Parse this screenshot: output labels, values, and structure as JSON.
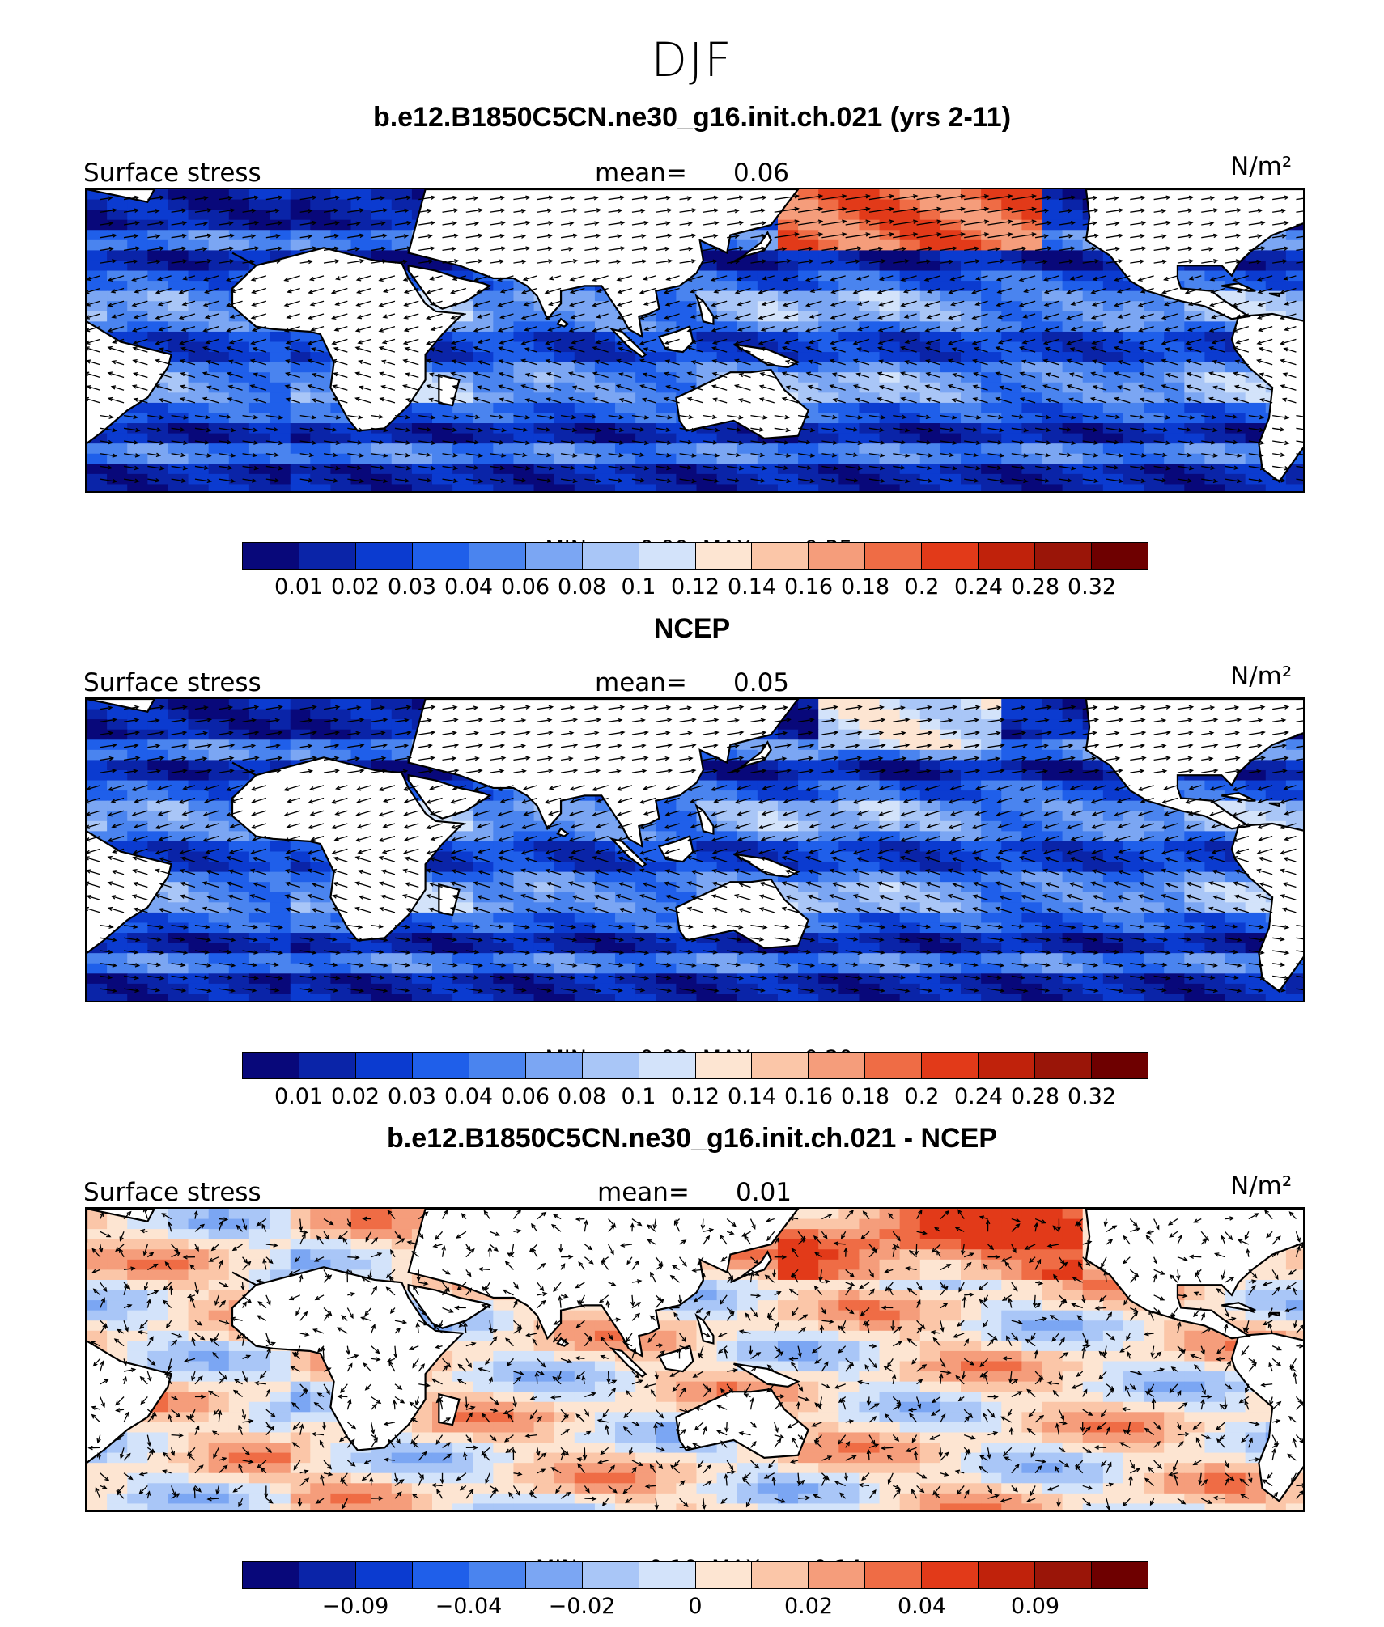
{
  "title": "DJF",
  "panels": [
    {
      "title": "b.e12.B1850C5CN.ne30_g16.init.ch.021 (yrs 2-11)",
      "left_label": "Surface stress",
      "mean_label": "mean=",
      "mean_value": "0.06",
      "units": "N/m²",
      "min_label": "MIN =",
      "min_value": "0.00",
      "max_label": "MAX =",
      "max_value": "0.35",
      "palette": "blue",
      "colorbar_labels": [
        "0.01",
        "0.02",
        "0.03",
        "0.04",
        "0.06",
        "0.08",
        "0.1",
        "0.12",
        "0.14",
        "0.16",
        "0.18",
        "0.2",
        "0.24",
        "0.28",
        "0.32"
      ]
    },
    {
      "title": "NCEP",
      "left_label": "Surface stress",
      "mean_label": "mean=",
      "mean_value": "0.05",
      "units": "N/m²",
      "min_label": "MIN =",
      "min_value": "0.00",
      "max_label": "MAX =",
      "max_value": "0.20",
      "palette": "blue",
      "colorbar_labels": [
        "0.01",
        "0.02",
        "0.03",
        "0.04",
        "0.06",
        "0.08",
        "0.1",
        "0.12",
        "0.14",
        "0.16",
        "0.18",
        "0.2",
        "0.24",
        "0.28",
        "0.32"
      ]
    },
    {
      "title": "b.e12.B1850C5CN.ne30_g16.init.ch.021 - NCEP",
      "left_label": "Surface stress",
      "mean_label": "mean=",
      "mean_value": "0.01",
      "units": "N/m²",
      "min_label": "MIN =",
      "min_value": "−0.10",
      "max_label": "MAX =",
      "max_value": "0.14",
      "palette": "diff",
      "colorbar_labels": [
        "−0.09",
        "−0.04",
        "−0.02",
        "0",
        "0.02",
        "0.04",
        "0.09"
      ]
    }
  ],
  "colors": {
    "scale": [
      "#08087a",
      "#0a24a8",
      "#0b3bd0",
      "#1f5fea",
      "#4a84ef",
      "#7ba6f3",
      "#a9c6f7",
      "#d3e3fa",
      "#fde5d2",
      "#fbc6a8",
      "#f59d7b",
      "#ef6c45",
      "#e23a19",
      "#c0220b",
      "#9a1508",
      "#6e0000"
    ],
    "land": "#ffffff",
    "coast": "#000000"
  }
}
